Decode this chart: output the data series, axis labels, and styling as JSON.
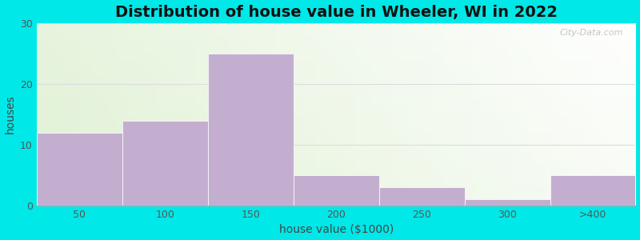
{
  "title": "Distribution of house value in Wheeler, WI in 2022",
  "xlabel": "house value ($1000)",
  "ylabel": "houses",
  "categories": [
    "50",
    "100",
    "150",
    "200",
    "250",
    "300",
    ">400"
  ],
  "values": [
    12,
    14,
    25,
    5,
    3,
    1,
    5
  ],
  "bar_color": "#c4aed0",
  "ylim": [
    0,
    30
  ],
  "yticks": [
    0,
    10,
    20,
    30
  ],
  "background_color": "#00e8e8",
  "title_fontsize": 14,
  "label_fontsize": 10,
  "tick_fontsize": 9,
  "watermark_text": "City-Data.com"
}
